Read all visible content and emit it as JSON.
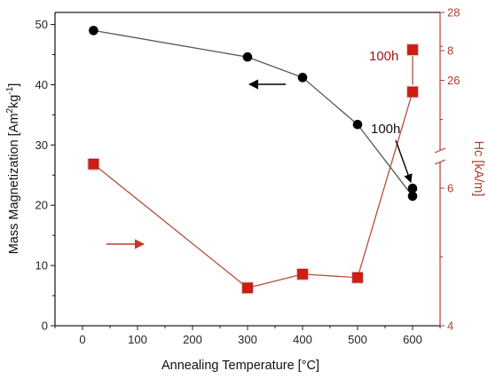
{
  "chart_data": {
    "type": "scatter",
    "xlabel": "Annealing Temperature [°C]",
    "ylabel_left_prefix": "Mass Magnetization [Am",
    "ylabel_left_sup1": "2",
    "ylabel_left_mid": "kg",
    "ylabel_left_sup2": "-1",
    "ylabel_left_suffix": "]",
    "ylabel_right": "Hc [kA/m]",
    "xlim": [
      -50,
      650
    ],
    "xticks": [
      "0",
      "100",
      "200",
      "300",
      "400",
      "500",
      "600"
    ],
    "xtick_values": [
      0,
      100,
      200,
      300,
      400,
      500,
      600
    ],
    "ylim_left": [
      0,
      52
    ],
    "yticks_left": [
      "0",
      "10",
      "20",
      "30",
      "40",
      "50"
    ],
    "yticks_left_values": [
      0,
      10,
      20,
      30,
      40,
      50
    ],
    "ylim_right": [
      4,
      28
    ],
    "right_axis_broken": true,
    "yticks_right_lower": [
      "4",
      "6",
      "8"
    ],
    "yticks_right_lower_values": [
      4,
      6,
      8
    ],
    "yticks_right_upper": [
      "26",
      "28"
    ],
    "yticks_right_upper_values": [
      26,
      28
    ],
    "grid": false,
    "series": [
      {
        "axis": "left",
        "color": "#111111",
        "marker": "circle",
        "x": [
          20,
          300,
          400,
          500,
          600
        ],
        "y": [
          49,
          44.6,
          41.2,
          33.4,
          21.5
        ]
      },
      {
        "axis": "left",
        "color": "#111111",
        "marker": "circle",
        "x": [
          600
        ],
        "y": [
          22.8
        ]
      },
      {
        "axis": "right",
        "color": "#d21c10",
        "marker": "square",
        "x": [
          20,
          300,
          400,
          500,
          600
        ],
        "y": [
          6.35,
          4.55,
          4.75,
          4.7,
          7.4
        ]
      },
      {
        "axis": "right",
        "color": "#d21c10",
        "marker": "square",
        "x": [
          600
        ],
        "y": [
          26.9
        ]
      }
    ],
    "annotations": [
      {
        "text": "100h",
        "target": "magnetization-100h"
      },
      {
        "text": "100h",
        "target": "coercivity-100h"
      }
    ]
  },
  "colors": {
    "left_axis": "#111111",
    "right_axis": "#b43c2d",
    "mag_line": "#555555",
    "hc_line": "#b4503c"
  }
}
